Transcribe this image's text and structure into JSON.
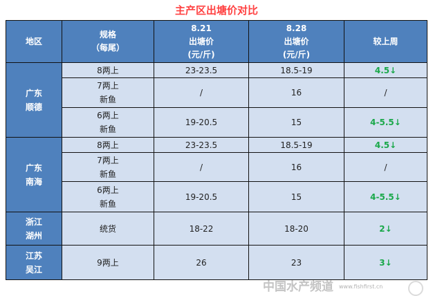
{
  "title": "主产区出塘价对比",
  "headers": {
    "region": "地区",
    "spec": [
      "规格",
      "（每尾）"
    ],
    "d1": [
      "8.21",
      "出塘价",
      "(元/斤)"
    ],
    "d2": [
      "8.28",
      "出塘价",
      "(元/斤)"
    ],
    "change": "较上周"
  },
  "groups": [
    {
      "region": [
        "广东",
        "顺德"
      ],
      "rows": [
        {
          "spec": [
            "8两上"
          ],
          "p1": "23-23.5",
          "p2": "18.5-19",
          "change": "4.5↓"
        },
        {
          "spec": [
            "7两上",
            "新鱼"
          ],
          "p1": "/",
          "p2": "16",
          "change": "/"
        },
        {
          "spec": [
            "6两上",
            "新鱼"
          ],
          "p1": "19-20.5",
          "p2": "15",
          "change": "4-5.5↓"
        }
      ]
    },
    {
      "region": [
        "广东",
        "南海"
      ],
      "rows": [
        {
          "spec": [
            "8两上"
          ],
          "p1": "23-23.5",
          "p2": "18.5-19",
          "change": "4.5↓"
        },
        {
          "spec": [
            "7两上",
            "新鱼"
          ],
          "p1": "/",
          "p2": "16",
          "change": "/"
        },
        {
          "spec": [
            "6两上",
            "新鱼"
          ],
          "p1": "19-20.5",
          "p2": "15",
          "change": "4-5.5↓"
        }
      ]
    },
    {
      "region": [
        "浙江",
        "湖州"
      ],
      "rows": [
        {
          "spec": [
            "统货"
          ],
          "p1": "18-22",
          "p2": "18-20",
          "change": "2↓"
        }
      ]
    },
    {
      "region": [
        "江苏",
        "吴江"
      ],
      "rows": [
        {
          "spec": [
            "9两上"
          ],
          "p1": "26",
          "p2": "23",
          "change": "3↓"
        }
      ]
    }
  ],
  "watermark": {
    "text": "中国水产频道",
    "url": "www.fishfirst.cn"
  },
  "colors": {
    "header": "#4f81bd",
    "cell": "#d3dff0",
    "title": "#ff4040",
    "down": "#1aa84a"
  }
}
